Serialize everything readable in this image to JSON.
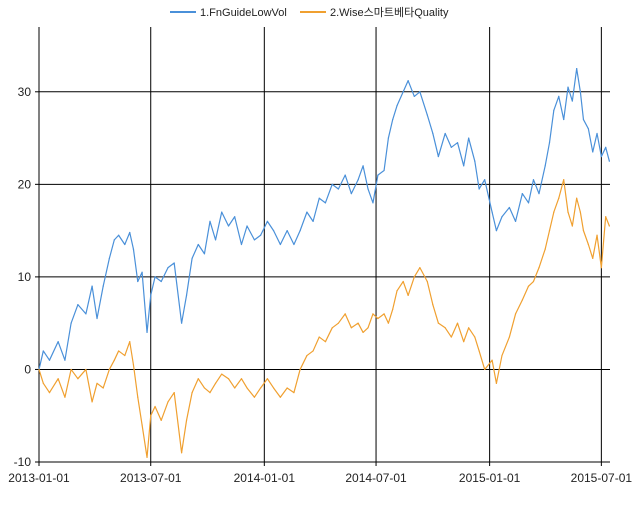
{
  "chart_data": {
    "type": "line",
    "title": "",
    "xlabel": "",
    "ylabel": "",
    "xlim": [
      "2013-01-01",
      "2015-07-15"
    ],
    "ylim": [
      -10,
      37
    ],
    "x_ticks": [
      "2013-01-01",
      "2013-07-01",
      "2014-01-01",
      "2014-07-01",
      "2015-01-01",
      "2015-07-01"
    ],
    "y_ticks": [
      -10,
      0,
      10,
      20,
      30
    ],
    "grid": true,
    "legend_position": "top-center",
    "series": [
      {
        "name": "1.FnGuideLowVol",
        "color": "#4a90d9",
        "points": [
          [
            "2013-01-01",
            0
          ],
          [
            "2013-01-08",
            2
          ],
          [
            "2013-01-18",
            1
          ],
          [
            "2013-02-01",
            3
          ],
          [
            "2013-02-12",
            1
          ],
          [
            "2013-02-22",
            5
          ],
          [
            "2013-03-05",
            7
          ],
          [
            "2013-03-18",
            6
          ],
          [
            "2013-03-28",
            9
          ],
          [
            "2013-04-05",
            5.5
          ],
          [
            "2013-04-15",
            9
          ],
          [
            "2013-04-25",
            12
          ],
          [
            "2013-05-03",
            14
          ],
          [
            "2013-05-10",
            14.5
          ],
          [
            "2013-05-20",
            13.5
          ],
          [
            "2013-05-28",
            14.8
          ],
          [
            "2013-06-03",
            13
          ],
          [
            "2013-06-10",
            9.5
          ],
          [
            "2013-06-17",
            10.5
          ],
          [
            "2013-06-25",
            4
          ],
          [
            "2013-07-01",
            8
          ],
          [
            "2013-07-08",
            10
          ],
          [
            "2013-07-18",
            9.5
          ],
          [
            "2013-07-29",
            11
          ],
          [
            "2013-08-08",
            11.5
          ],
          [
            "2013-08-20",
            5
          ],
          [
            "2013-08-28",
            8
          ],
          [
            "2013-09-06",
            12
          ],
          [
            "2013-09-16",
            13.5
          ],
          [
            "2013-09-26",
            12.5
          ],
          [
            "2013-10-05",
            16
          ],
          [
            "2013-10-14",
            14
          ],
          [
            "2013-10-24",
            17
          ],
          [
            "2013-11-04",
            15.5
          ],
          [
            "2013-11-14",
            16.5
          ],
          [
            "2013-11-25",
            13.5
          ],
          [
            "2013-12-04",
            15.5
          ],
          [
            "2013-12-16",
            14
          ],
          [
            "2013-12-26",
            14.5
          ],
          [
            "2014-01-06",
            16
          ],
          [
            "2014-01-16",
            15
          ],
          [
            "2014-01-27",
            13.5
          ],
          [
            "2014-02-07",
            15
          ],
          [
            "2014-02-18",
            13.5
          ],
          [
            "2014-02-28",
            15
          ],
          [
            "2014-03-11",
            17
          ],
          [
            "2014-03-21",
            16
          ],
          [
            "2014-03-31",
            18.5
          ],
          [
            "2014-04-10",
            18
          ],
          [
            "2014-04-21",
            20
          ],
          [
            "2014-05-01",
            19.5
          ],
          [
            "2014-05-12",
            21
          ],
          [
            "2014-05-22",
            19
          ],
          [
            "2014-06-02",
            20.5
          ],
          [
            "2014-06-10",
            22
          ],
          [
            "2014-06-18",
            19.5
          ],
          [
            "2014-06-26",
            18
          ],
          [
            "2014-07-04",
            21
          ],
          [
            "2014-07-14",
            21.5
          ],
          [
            "2014-07-21",
            25
          ],
          [
            "2014-07-28",
            27
          ],
          [
            "2014-08-04",
            28.5
          ],
          [
            "2014-08-14",
            30
          ],
          [
            "2014-08-22",
            31.2
          ],
          [
            "2014-09-01",
            29.5
          ],
          [
            "2014-09-10",
            30
          ],
          [
            "2014-09-22",
            27.5
          ],
          [
            "2014-10-01",
            25.5
          ],
          [
            "2014-10-10",
            23
          ],
          [
            "2014-10-21",
            25.5
          ],
          [
            "2014-10-31",
            24
          ],
          [
            "2014-11-10",
            24.5
          ],
          [
            "2014-11-20",
            22
          ],
          [
            "2014-11-28",
            25
          ],
          [
            "2014-12-08",
            22.5
          ],
          [
            "2014-12-15",
            19.5
          ],
          [
            "2014-12-24",
            20.5
          ],
          [
            "2015-01-05",
            17
          ],
          [
            "2015-01-12",
            15
          ],
          [
            "2015-01-21",
            16.5
          ],
          [
            "2015-02-02",
            17.5
          ],
          [
            "2015-02-12",
            16
          ],
          [
            "2015-02-23",
            19
          ],
          [
            "2015-03-05",
            18
          ],
          [
            "2015-03-13",
            20.5
          ],
          [
            "2015-03-22",
            19
          ],
          [
            "2015-04-01",
            22
          ],
          [
            "2015-04-08",
            24.5
          ],
          [
            "2015-04-15",
            28
          ],
          [
            "2015-04-23",
            29.5
          ],
          [
            "2015-05-01",
            27
          ],
          [
            "2015-05-08",
            30.5
          ],
          [
            "2015-05-15",
            29
          ],
          [
            "2015-05-22",
            32.5
          ],
          [
            "2015-05-28",
            30
          ],
          [
            "2015-06-02",
            27
          ],
          [
            "2015-06-10",
            26
          ],
          [
            "2015-06-17",
            23.5
          ],
          [
            "2015-06-24",
            25.5
          ],
          [
            "2015-07-01",
            23
          ],
          [
            "2015-07-08",
            24
          ],
          [
            "2015-07-14",
            22.5
          ]
        ]
      },
      {
        "name": "2.Wise스마트베타Quality",
        "color": "#f0a030",
        "points": [
          [
            "2013-01-01",
            0
          ],
          [
            "2013-01-08",
            -1.5
          ],
          [
            "2013-01-18",
            -2.5
          ],
          [
            "2013-02-01",
            -1
          ],
          [
            "2013-02-12",
            -3
          ],
          [
            "2013-02-22",
            0
          ],
          [
            "2013-03-05",
            -1
          ],
          [
            "2013-03-18",
            0
          ],
          [
            "2013-03-28",
            -3.5
          ],
          [
            "2013-04-05",
            -1.5
          ],
          [
            "2013-04-15",
            -2
          ],
          [
            "2013-04-25",
            0
          ],
          [
            "2013-05-03",
            1
          ],
          [
            "2013-05-10",
            2
          ],
          [
            "2013-05-20",
            1.5
          ],
          [
            "2013-05-28",
            3
          ],
          [
            "2013-06-03",
            0.5
          ],
          [
            "2013-06-10",
            -3
          ],
          [
            "2013-06-17",
            -6
          ],
          [
            "2013-06-25",
            -9.5
          ],
          [
            "2013-07-01",
            -5
          ],
          [
            "2013-07-08",
            -4
          ],
          [
            "2013-07-18",
            -5.5
          ],
          [
            "2013-07-29",
            -3.5
          ],
          [
            "2013-08-08",
            -2.5
          ],
          [
            "2013-08-20",
            -9
          ],
          [
            "2013-08-28",
            -5.5
          ],
          [
            "2013-09-06",
            -2.5
          ],
          [
            "2013-09-16",
            -1
          ],
          [
            "2013-09-26",
            -2
          ],
          [
            "2013-10-05",
            -2.5
          ],
          [
            "2013-10-14",
            -1.5
          ],
          [
            "2013-10-24",
            -0.5
          ],
          [
            "2013-11-04",
            -1
          ],
          [
            "2013-11-14",
            -2
          ],
          [
            "2013-11-25",
            -1
          ],
          [
            "2013-12-04",
            -2
          ],
          [
            "2013-12-16",
            -3
          ],
          [
            "2013-12-26",
            -2
          ],
          [
            "2014-01-06",
            -1
          ],
          [
            "2014-01-16",
            -2
          ],
          [
            "2014-01-27",
            -3
          ],
          [
            "2014-02-07",
            -2
          ],
          [
            "2014-02-18",
            -2.5
          ],
          [
            "2014-02-28",
            0
          ],
          [
            "2014-03-11",
            1.5
          ],
          [
            "2014-03-21",
            2
          ],
          [
            "2014-03-31",
            3.5
          ],
          [
            "2014-04-10",
            3
          ],
          [
            "2014-04-21",
            4.5
          ],
          [
            "2014-05-01",
            5
          ],
          [
            "2014-05-12",
            6
          ],
          [
            "2014-05-22",
            4.5
          ],
          [
            "2014-06-02",
            5
          ],
          [
            "2014-06-10",
            4
          ],
          [
            "2014-06-18",
            4.5
          ],
          [
            "2014-06-26",
            6
          ],
          [
            "2014-07-04",
            5.5
          ],
          [
            "2014-07-14",
            6
          ],
          [
            "2014-07-21",
            5
          ],
          [
            "2014-07-28",
            6.5
          ],
          [
            "2014-08-04",
            8.5
          ],
          [
            "2014-08-14",
            9.5
          ],
          [
            "2014-08-22",
            8
          ],
          [
            "2014-09-01",
            10
          ],
          [
            "2014-09-10",
            11
          ],
          [
            "2014-09-22",
            9.5
          ],
          [
            "2014-10-01",
            7
          ],
          [
            "2014-10-10",
            5
          ],
          [
            "2014-10-21",
            4.5
          ],
          [
            "2014-10-31",
            3.5
          ],
          [
            "2014-11-10",
            5
          ],
          [
            "2014-11-20",
            3
          ],
          [
            "2014-11-28",
            4.5
          ],
          [
            "2014-12-08",
            3.5
          ],
          [
            "2014-12-15",
            2
          ],
          [
            "2014-12-24",
            0
          ],
          [
            "2015-01-05",
            1
          ],
          [
            "2015-01-12",
            -1.5
          ],
          [
            "2015-01-21",
            1.5
          ],
          [
            "2015-02-02",
            3.5
          ],
          [
            "2015-02-12",
            6
          ],
          [
            "2015-02-23",
            7.5
          ],
          [
            "2015-03-05",
            9
          ],
          [
            "2015-03-13",
            9.5
          ],
          [
            "2015-03-22",
            11
          ],
          [
            "2015-04-01",
            13
          ],
          [
            "2015-04-08",
            15
          ],
          [
            "2015-04-15",
            17
          ],
          [
            "2015-04-23",
            18.5
          ],
          [
            "2015-05-01",
            20.5
          ],
          [
            "2015-05-08",
            17
          ],
          [
            "2015-05-15",
            15.5
          ],
          [
            "2015-05-22",
            18.5
          ],
          [
            "2015-05-28",
            17
          ],
          [
            "2015-06-02",
            15
          ],
          [
            "2015-06-10",
            13.5
          ],
          [
            "2015-06-17",
            12
          ],
          [
            "2015-06-24",
            14.5
          ],
          [
            "2015-07-01",
            11
          ],
          [
            "2015-07-08",
            16.5
          ],
          [
            "2015-07-14",
            15.5
          ]
        ]
      }
    ]
  }
}
